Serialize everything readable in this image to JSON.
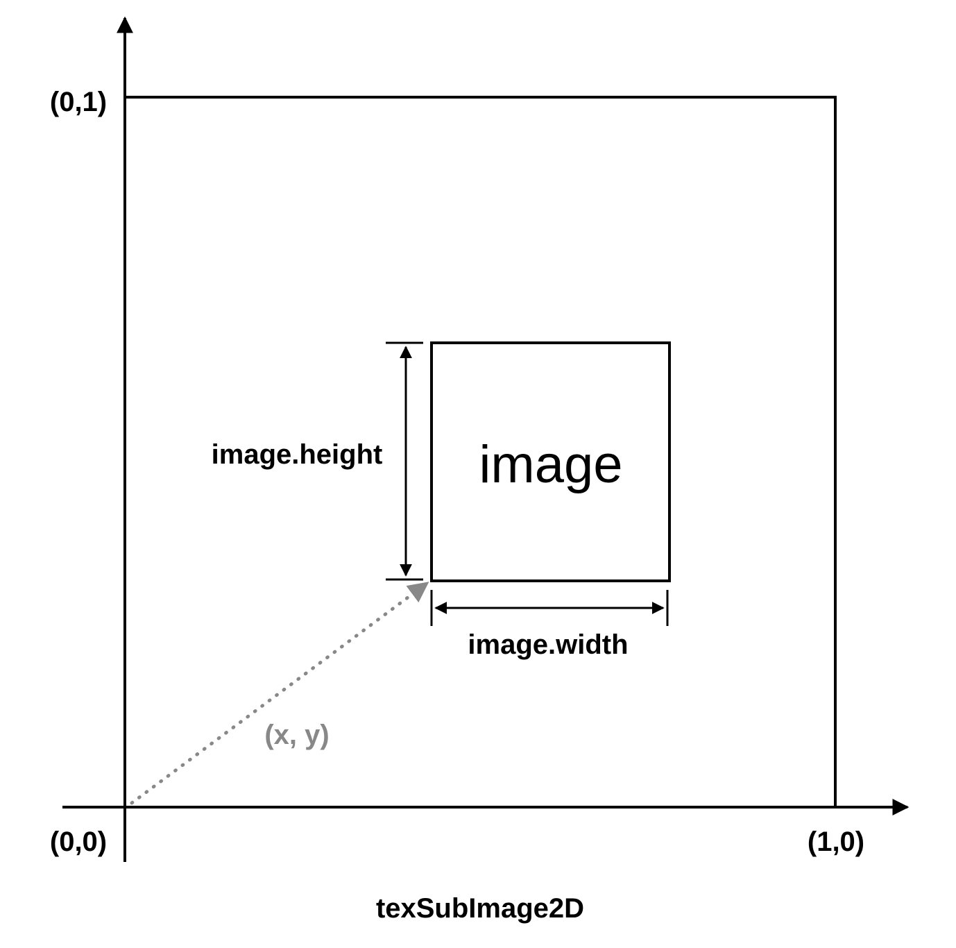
{
  "diagram": {
    "title": "texSubImage2D",
    "corners": {
      "origin": "(0,0)",
      "top_left": "(0,1)",
      "bottom_right": "(1,0)"
    },
    "image_label": "image",
    "width_label": "image.width",
    "height_label": "image.height",
    "offset_label": "(x, y)"
  },
  "colors": {
    "stroke": "#000000",
    "offset_arrow": "#888888",
    "background": "#ffffff"
  }
}
